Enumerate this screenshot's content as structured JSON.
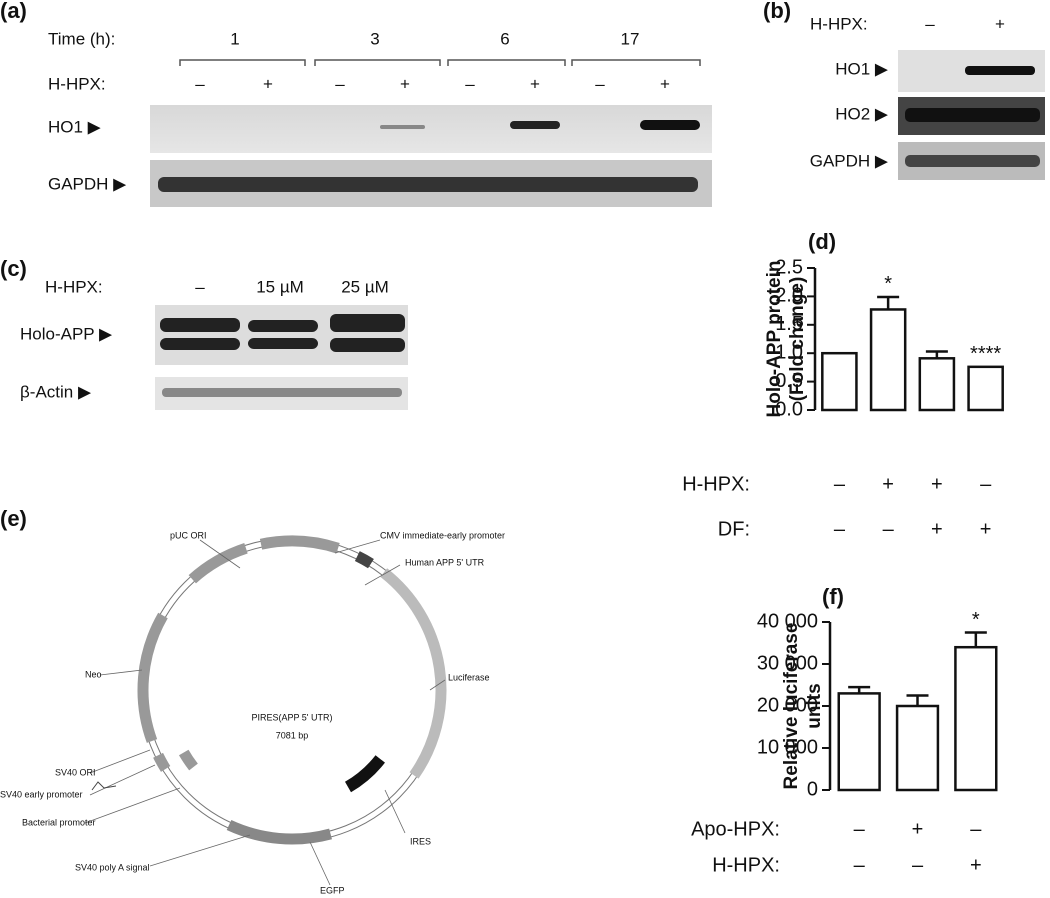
{
  "panels": {
    "a": {
      "label": "(a)",
      "time_label": "Time (h):",
      "times": [
        "1",
        "3",
        "6",
        "17"
      ],
      "treatment_label": "H-HPX:",
      "treatments": [
        "–",
        "+",
        "–",
        "+",
        "–",
        "+",
        "–",
        "+"
      ],
      "rows": [
        "HO1 ▶",
        "GAPDH ▶"
      ]
    },
    "b": {
      "label": "(b)",
      "treatment_label": "H-HPX:",
      "treatments": [
        "–",
        "+"
      ],
      "rows": [
        "HO1 ▶",
        "HO2 ▶",
        "GAPDH ▶"
      ]
    },
    "c": {
      "label": "(c)",
      "treatment_label": "H-HPX:",
      "treatments": [
        "–",
        "15 µM",
        "25 µM"
      ],
      "rows": [
        "Holo-APP ▶",
        "β-Actin ▶"
      ]
    },
    "e": {
      "label": "(e)",
      "center": [
        "PIRES(APP 5' UTR)",
        "7081 bp"
      ],
      "features": [
        "pUC ORI",
        "CMV immediate-early promoter",
        "Human APP 5' UTR",
        "Luciferase",
        "Neo",
        "SV40 ORI",
        "SV40 early promoter",
        "Bacterial promoter",
        "IRES",
        "SV40 poly A signal",
        "EGFP"
      ]
    }
  },
  "chart_data": [
    {
      "type": "bar",
      "panel_label": "(d)",
      "y_label": [
        "Holo-APP protein",
        "(Fold change)"
      ],
      "categories": [
        null,
        null,
        null,
        null
      ],
      "values": [
        1.0,
        1.77,
        0.91,
        0.76
      ],
      "errors": [
        null,
        0.22,
        0.12,
        null
      ],
      "significance": [
        null,
        "*",
        null,
        "****"
      ],
      "conditions": [
        {
          "name": "H-HPX:",
          "values": [
            "–",
            "+",
            "+",
            "–"
          ]
        },
        {
          "name": "DF:",
          "values": [
            "–",
            "–",
            "+",
            "+"
          ]
        }
      ],
      "color": "#ffffff",
      "ylim": [
        0,
        2.5
      ],
      "yticks": [
        {
          "value": 0,
          "label": "0.0"
        },
        0.5,
        {
          "value": 1,
          "label": "1.0"
        },
        1.5,
        {
          "value": 2,
          "label": "2.0"
        },
        2.5
      ]
    },
    {
      "type": "bar",
      "panel_label": "(f)",
      "y_label": [
        "Relative luciferase",
        "units"
      ],
      "categories": [
        null,
        null,
        null
      ],
      "values": [
        23000,
        20000,
        34000
      ],
      "errors": [
        1500,
        2500,
        3500
      ],
      "significance": [
        null,
        null,
        "*"
      ],
      "conditions": [
        {
          "name": "Apo-HPX:",
          "values": [
            "–",
            "+",
            "–"
          ]
        },
        {
          "name": "H-HPX:",
          "values": [
            "–",
            "–",
            "+"
          ]
        }
      ],
      "color": "#ffffff",
      "ylim": [
        0,
        40000
      ],
      "yticks": [
        0,
        {
          "value": 10000,
          "label": "10 000"
        },
        {
          "value": 20000,
          "label": "20 000"
        },
        {
          "value": 30000,
          "label": "30 000"
        },
        {
          "value": 40000,
          "label": "40 000"
        }
      ]
    }
  ]
}
